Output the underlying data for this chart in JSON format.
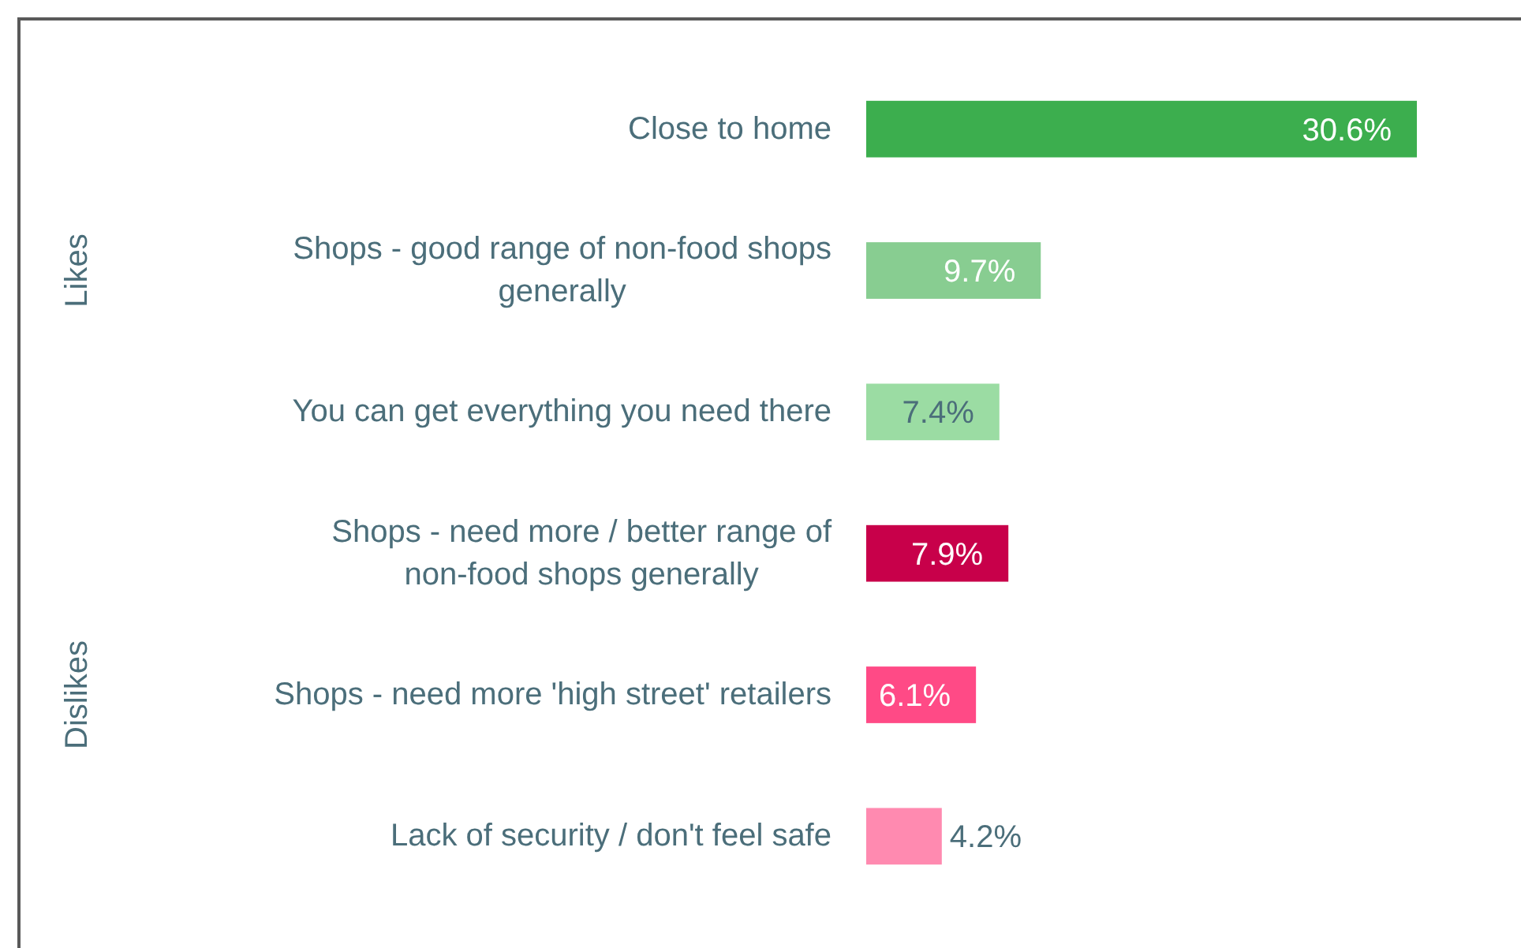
{
  "chart_data": {
    "type": "bar",
    "orientation": "horizontal",
    "categories": [
      "Close to home",
      "Shops - good range of non-food shops generally",
      "You can get everything you need there",
      "Shops - need more / better range of non-food shops generally",
      "Shops - need more 'high street' retailers",
      "Lack of security / don't feel safe"
    ],
    "values": [
      30.6,
      9.7,
      7.4,
      7.9,
      6.1,
      4.2
    ],
    "colors": [
      "#3cae4e",
      "#88cd91",
      "#9bdca3",
      "#c8004a",
      "#ff4a86",
      "#ff8ab0"
    ],
    "value_labels": [
      "30.6%",
      "9.7%",
      "7.4%",
      "7.9%",
      "6.1%",
      "4.2%"
    ],
    "annotations": [
      "Likes",
      "Dislikes"
    ]
  }
}
